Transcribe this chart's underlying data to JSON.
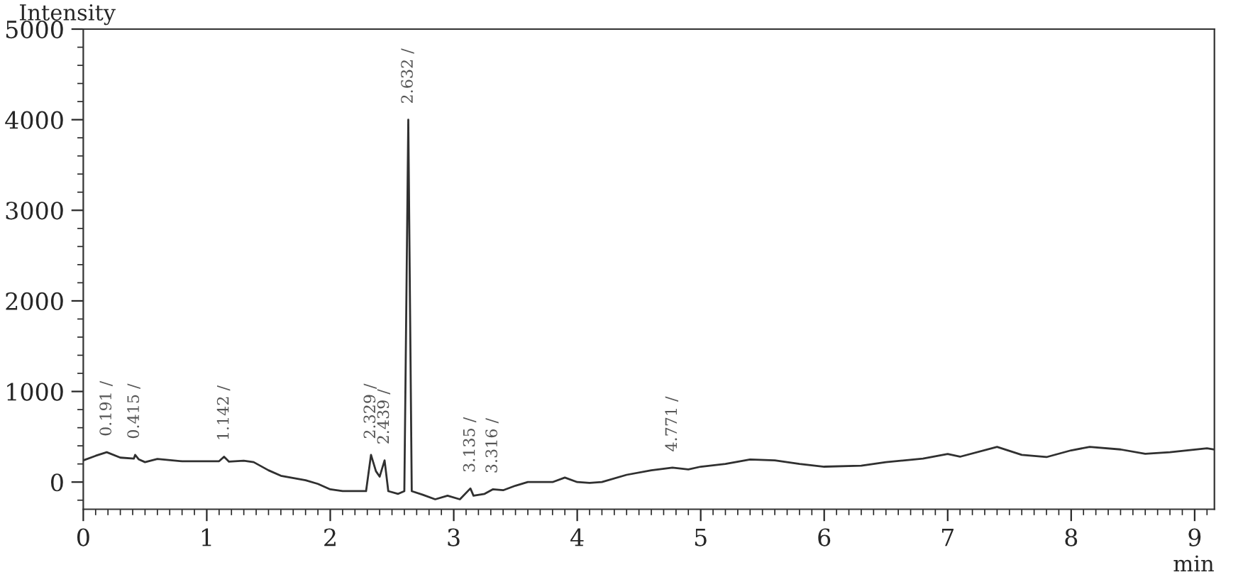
{
  "chart_data": {
    "type": "line",
    "xlabel": "min",
    "ylabel": "Intensity",
    "xlim": [
      0,
      9.16
    ],
    "ylim": [
      -300,
      5000
    ],
    "xticks": [
      0,
      1,
      2,
      3,
      4,
      5,
      6,
      7,
      8,
      9
    ],
    "yticks": [
      0,
      1000,
      2000,
      3000,
      4000,
      5000
    ],
    "grid": false,
    "marker": "none",
    "line_style": "solid",
    "x": [
      0,
      0.1,
      0.19,
      0.3,
      0.41,
      0.42,
      0.45,
      0.5,
      0.6,
      0.8,
      1.0,
      1.1,
      1.14,
      1.18,
      1.3,
      1.38,
      1.5,
      1.6,
      1.8,
      1.9,
      2.0,
      2.1,
      2.2,
      2.29,
      2.33,
      2.37,
      2.4,
      2.44,
      2.47,
      2.55,
      2.6,
      2.632,
      2.66,
      2.75,
      2.85,
      2.95,
      3.05,
      3.135,
      3.16,
      3.25,
      3.316,
      3.4,
      3.5,
      3.6,
      3.8,
      3.9,
      4.0,
      4.1,
      4.2,
      4.4,
      4.6,
      4.771,
      4.9,
      5.0,
      5.2,
      5.4,
      5.6,
      5.8,
      6.0,
      6.3,
      6.5,
      6.8,
      7.0,
      7.1,
      7.4,
      7.6,
      7.8,
      8.0,
      8.15,
      8.4,
      8.6,
      8.8,
      9.1,
      9.16
    ],
    "series": [
      {
        "color": "#303030",
        "values": [
          240,
          290,
          330,
          270,
          260,
          300,
          250,
          220,
          255,
          230,
          230,
          230,
          280,
          225,
          235,
          220,
          130,
          70,
          20,
          -20,
          -80,
          -100,
          -100,
          -100,
          300,
          120,
          60,
          240,
          -100,
          -130,
          -100,
          4000,
          -100,
          -140,
          -190,
          -150,
          -190,
          -70,
          -150,
          -130,
          -80,
          -90,
          -40,
          0,
          0,
          50,
          0,
          -10,
          0,
          80,
          130,
          160,
          140,
          170,
          200,
          250,
          240,
          200,
          170,
          180,
          220,
          260,
          310,
          280,
          388,
          300,
          276,
          350,
          388,
          360,
          312,
          330,
          373,
          360
        ]
      }
    ],
    "annotations": [
      {
        "text": "0.191 /",
        "x": 0.191,
        "y": 330
      },
      {
        "text": "0.415 /",
        "x": 0.415,
        "y": 300
      },
      {
        "text": "1.142 /",
        "x": 1.142,
        "y": 280
      },
      {
        "text": "2.329 /",
        "x": 2.329,
        "y": 300
      },
      {
        "text": "2.439 /",
        "x": 2.439,
        "y": 240
      },
      {
        "text": "2.632 /",
        "x": 2.632,
        "y": 4000
      },
      {
        "text": "3.135 /",
        "x": 3.135,
        "y": -70
      },
      {
        "text": "3.316 /",
        "x": 3.316,
        "y": -80
      },
      {
        "text": "4.771 /",
        "x": 4.771,
        "y": 160
      }
    ]
  }
}
